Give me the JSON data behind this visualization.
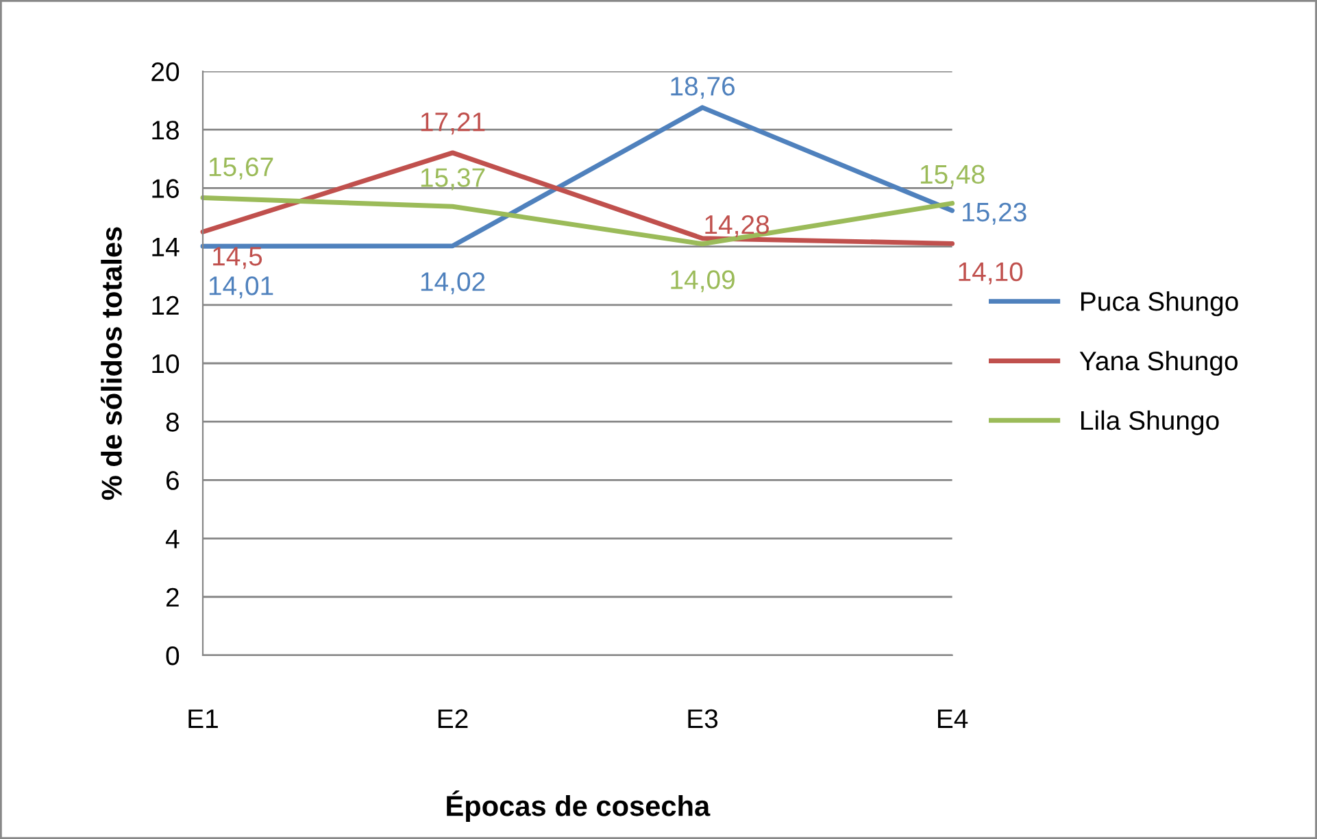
{
  "chart_data": {
    "type": "line",
    "xlabel": "Épocas de cosecha",
    "ylabel": "% de sólidos totales",
    "categories": [
      "E1",
      "E2",
      "E3",
      "E4"
    ],
    "ylim": [
      0,
      20
    ],
    "yticks": [
      0,
      2,
      4,
      6,
      8,
      10,
      12,
      14,
      16,
      18,
      20
    ],
    "grid": "y",
    "legend": "right",
    "marker": "none",
    "line_style": "solid",
    "series": [
      {
        "name": "Puca Shungo",
        "color": "#4f81bd",
        "values": [
          14.01,
          14.02,
          18.76,
          15.23
        ],
        "value_labels": [
          "14,01",
          "14,02",
          "18,76",
          "15,23"
        ]
      },
      {
        "name": "Yana Shungo",
        "color": "#c0504d",
        "values": [
          14.5,
          17.21,
          14.28,
          14.1
        ],
        "value_labels": [
          "14,5",
          "17,21",
          "14,28",
          "14,10"
        ]
      },
      {
        "name": "Lila Shungo",
        "color": "#9bbb59",
        "values": [
          15.67,
          15.37,
          14.09,
          15.48
        ],
        "value_labels": [
          "15,67",
          "15,37",
          "14,09",
          "15,48"
        ]
      }
    ]
  }
}
